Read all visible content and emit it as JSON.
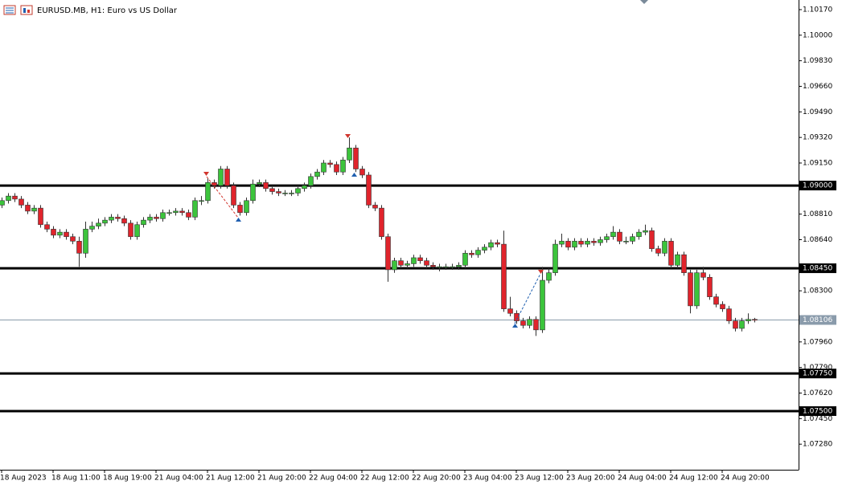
{
  "chart_data": {
    "type": "candlestick",
    "title": "EURUSD.MB, H1:  Euro vs US Dollar",
    "up_color": "#3cc43c",
    "down_color": "#e0242c",
    "categories": [
      "18 Aug 2023",
      null,
      null,
      null,
      null,
      null,
      null,
      null,
      "18 Aug 11:00",
      null,
      null,
      null,
      null,
      null,
      null,
      null,
      "18 Aug 19:00",
      null,
      null,
      null,
      null,
      null,
      null,
      null,
      "21 Aug 04:00",
      null,
      null,
      null,
      null,
      null,
      null,
      null,
      "21 Aug 12:00",
      null,
      null,
      null,
      null,
      null,
      null,
      null,
      "21 Aug 20:00",
      null,
      null,
      null,
      null,
      null,
      null,
      null,
      "22 Aug 04:00",
      null,
      null,
      null,
      null,
      null,
      null,
      null,
      "22 Aug 12:00",
      null,
      null,
      null,
      null,
      null,
      null,
      null,
      "22 Aug 20:00",
      null,
      null,
      null,
      null,
      null,
      null,
      null,
      "23 Aug 04:00",
      null,
      null,
      null,
      null,
      null,
      null,
      null,
      "23 Aug 12:00",
      null,
      null,
      null,
      null,
      null,
      null,
      null,
      "23 Aug 20:00",
      null,
      null,
      null,
      null,
      null,
      null,
      null,
      "24 Aug 04:00",
      null,
      null,
      null,
      null,
      null,
      null,
      null,
      "24 Aug 12:00",
      null,
      null,
      null,
      null,
      null,
      null,
      null,
      "24 Aug 20:00",
      null,
      null,
      null,
      null,
      null
    ],
    "ohlc": [
      [
        1.0887,
        1.0892,
        1.0885,
        1.089
      ],
      [
        1.089,
        1.0895,
        1.0888,
        1.0893
      ],
      [
        1.0893,
        1.0895,
        1.0889,
        1.0891
      ],
      [
        1.0891,
        1.0893,
        1.0885,
        1.0887
      ],
      [
        1.0887,
        1.0889,
        1.0881,
        1.0883
      ],
      [
        1.0883,
        1.0887,
        1.0881,
        1.0885
      ],
      [
        1.0885,
        1.0887,
        1.0872,
        1.0874
      ],
      [
        1.0874,
        1.0876,
        1.0869,
        1.0871
      ],
      [
        1.0871,
        1.0873,
        1.0865,
        1.0867
      ],
      [
        1.0867,
        1.0871,
        1.0865,
        1.0869
      ],
      [
        1.0869,
        1.0871,
        1.0864,
        1.0866
      ],
      [
        1.0866,
        1.0868,
        1.0861,
        1.0863
      ],
      [
        1.0863,
        1.0866,
        1.0846,
        1.0855
      ],
      [
        1.0855,
        1.0876,
        1.0852,
        1.0871
      ],
      [
        1.0871,
        1.0876,
        1.0869,
        1.0873
      ],
      [
        1.0873,
        1.0878,
        1.0871,
        1.0875
      ],
      [
        1.0875,
        1.0879,
        1.0873,
        1.0877
      ],
      [
        1.0877,
        1.0881,
        1.0875,
        1.0879
      ],
      [
        1.0879,
        1.0881,
        1.0876,
        1.0878
      ],
      [
        1.0878,
        1.088,
        1.0873,
        1.0875
      ],
      [
        1.0875,
        1.0877,
        1.0864,
        1.0866
      ],
      [
        1.0866,
        1.0876,
        1.0864,
        1.0874
      ],
      [
        1.0874,
        1.0879,
        1.0872,
        1.0877
      ],
      [
        1.0877,
        1.0881,
        1.0875,
        1.0879
      ],
      [
        1.0879,
        1.0881,
        1.0876,
        1.0878
      ],
      [
        1.0878,
        1.0884,
        1.0876,
        1.0882
      ],
      [
        1.0882,
        1.0884,
        1.088,
        1.0882
      ],
      [
        1.0882,
        1.0885,
        1.088,
        1.0883
      ],
      [
        1.0883,
        1.0885,
        1.088,
        1.0882
      ],
      [
        1.0882,
        1.0884,
        1.0877,
        1.0879
      ],
      [
        1.0879,
        1.0892,
        1.0877,
        1.089
      ],
      [
        1.089,
        1.0893,
        1.0887,
        1.089
      ],
      [
        1.089,
        1.0905,
        1.0888,
        1.0902
      ],
      [
        1.0902,
        1.0904,
        1.0898,
        1.09
      ],
      [
        1.09,
        1.0913,
        1.0898,
        1.0911
      ],
      [
        1.0911,
        1.0913,
        1.0898,
        1.09
      ],
      [
        1.09,
        1.0902,
        1.0885,
        1.0887
      ],
      [
        1.0887,
        1.0889,
        1.088,
        1.0882
      ],
      [
        1.0882,
        1.0892,
        1.088,
        1.089
      ],
      [
        1.089,
        1.0904,
        1.0888,
        1.0901
      ],
      [
        1.0901,
        1.0904,
        1.0899,
        1.0902
      ],
      [
        1.0902,
        1.0904,
        1.0896,
        1.0898
      ],
      [
        1.0898,
        1.09,
        1.0894,
        1.0896
      ],
      [
        1.0896,
        1.0898,
        1.0893,
        1.0895
      ],
      [
        1.0895,
        1.0897,
        1.0893,
        1.0895
      ],
      [
        1.0895,
        1.0897,
        1.0893,
        1.0895
      ],
      [
        1.0895,
        1.09,
        1.0893,
        1.0898
      ],
      [
        1.0898,
        1.0902,
        1.0896,
        1.09
      ],
      [
        1.09,
        1.0908,
        1.0898,
        1.0906
      ],
      [
        1.0906,
        1.0911,
        1.0904,
        1.0909
      ],
      [
        1.0909,
        1.0917,
        1.0907,
        1.0915
      ],
      [
        1.0915,
        1.0917,
        1.0912,
        1.0914
      ],
      [
        1.0914,
        1.0916,
        1.0907,
        1.0909
      ],
      [
        1.0909,
        1.0919,
        1.0907,
        1.0917
      ],
      [
        1.0917,
        1.0932,
        1.0915,
        1.0925
      ],
      [
        1.0925,
        1.0927,
        1.0909,
        1.0911
      ],
      [
        1.0911,
        1.0913,
        1.0905,
        1.0907
      ],
      [
        1.0907,
        1.0909,
        1.0885,
        1.0887
      ],
      [
        1.0887,
        1.0889,
        1.0883,
        1.0885
      ],
      [
        1.0885,
        1.0887,
        1.0864,
        1.0866
      ],
      [
        1.0866,
        1.0868,
        1.0836,
        1.0844
      ],
      [
        1.0844,
        1.0852,
        1.0842,
        1.085
      ],
      [
        1.085,
        1.0852,
        1.0845,
        1.0847
      ],
      [
        1.0847,
        1.085,
        1.0845,
        1.0848
      ],
      [
        1.0848,
        1.0854,
        1.0846,
        1.0852
      ],
      [
        1.0852,
        1.0854,
        1.0848,
        1.085
      ],
      [
        1.085,
        1.0852,
        1.0845,
        1.0847
      ],
      [
        1.0847,
        1.0849,
        1.0844,
        1.0846
      ],
      [
        1.0846,
        1.0848,
        1.0843,
        1.0846
      ],
      [
        1.0846,
        1.0848,
        1.0844,
        1.0846
      ],
      [
        1.0846,
        1.0848,
        1.0844,
        1.0846
      ],
      [
        1.0846,
        1.0849,
        1.0844,
        1.0847
      ],
      [
        1.0847,
        1.0857,
        1.0845,
        1.0855
      ],
      [
        1.0855,
        1.0857,
        1.0852,
        1.0854
      ],
      [
        1.0854,
        1.0859,
        1.0852,
        1.0857
      ],
      [
        1.0857,
        1.0861,
        1.0855,
        1.0859
      ],
      [
        1.0859,
        1.0864,
        1.0857,
        1.0862
      ],
      [
        1.0862,
        1.0864,
        1.0859,
        1.0861
      ],
      [
        1.0861,
        1.087,
        1.0816,
        1.0818
      ],
      [
        1.0818,
        1.0826,
        1.0813,
        1.0815
      ],
      [
        1.0815,
        1.0817,
        1.0808,
        1.081
      ],
      [
        1.081,
        1.0812,
        1.0805,
        1.0807
      ],
      [
        1.0807,
        1.0813,
        1.0805,
        1.0811
      ],
      [
        1.0811,
        1.0813,
        1.08,
        1.0804
      ],
      [
        1.0804,
        1.0846,
        1.0802,
        1.0837
      ],
      [
        1.0837,
        1.0845,
        1.0835,
        1.0842
      ],
      [
        1.0842,
        1.0864,
        1.084,
        1.0861
      ],
      [
        1.0861,
        1.0868,
        1.0859,
        1.0863
      ],
      [
        1.0863,
        1.0865,
        1.0857,
        1.0859
      ],
      [
        1.0859,
        1.0865,
        1.0857,
        1.0863
      ],
      [
        1.0863,
        1.0865,
        1.0859,
        1.0861
      ],
      [
        1.0861,
        1.0865,
        1.0859,
        1.0863
      ],
      [
        1.0863,
        1.0865,
        1.086,
        1.0862
      ],
      [
        1.0862,
        1.0866,
        1.086,
        1.0864
      ],
      [
        1.0864,
        1.0868,
        1.0862,
        1.0866
      ],
      [
        1.0866,
        1.0873,
        1.0864,
        1.0869
      ],
      [
        1.0869,
        1.0871,
        1.0861,
        1.0863
      ],
      [
        1.0863,
        1.0866,
        1.0861,
        1.0863
      ],
      [
        1.0863,
        1.0868,
        1.0861,
        1.0866
      ],
      [
        1.0866,
        1.0871,
        1.0864,
        1.0869
      ],
      [
        1.0869,
        1.0874,
        1.0867,
        1.087
      ],
      [
        1.087,
        1.0872,
        1.0856,
        1.0858
      ],
      [
        1.0858,
        1.086,
        1.0853,
        1.0855
      ],
      [
        1.0855,
        1.0865,
        1.0853,
        1.0863
      ],
      [
        1.0863,
        1.0865,
        1.0845,
        1.0847
      ],
      [
        1.0847,
        1.0856,
        1.0845,
        1.0854
      ],
      [
        1.0854,
        1.0856,
        1.084,
        1.0842
      ],
      [
        1.0842,
        1.0844,
        1.0815,
        1.082
      ],
      [
        1.082,
        1.0844,
        1.0818,
        1.0842
      ],
      [
        1.0842,
        1.0846,
        1.0837,
        1.0839
      ],
      [
        1.0839,
        1.0841,
        1.0824,
        1.0826
      ],
      [
        1.0826,
        1.0828,
        1.0819,
        1.0821
      ],
      [
        1.0821,
        1.0823,
        1.0816,
        1.0818
      ],
      [
        1.0818,
        1.082,
        1.0808,
        1.081
      ],
      [
        1.081,
        1.0812,
        1.0803,
        1.0805
      ],
      [
        1.0805,
        1.0812,
        1.0803,
        1.081
      ],
      [
        1.081,
        1.0815,
        1.0808,
        1.0811
      ],
      [
        1.0811,
        1.0812,
        1.0809,
        1.08106
      ]
    ],
    "ylim": [
      1.0711,
      1.10234
    ],
    "yticks": [
      {
        "value": 1.1017,
        "label": "1.10170"
      },
      {
        "value": 1.1,
        "label": "1.10000"
      },
      {
        "value": 1.0983,
        "label": "1.09830"
      },
      {
        "value": 1.0966,
        "label": "1.09660"
      },
      {
        "value": 1.0949,
        "label": "1.09490"
      },
      {
        "value": 1.0932,
        "label": "1.09320"
      },
      {
        "value": 1.0915,
        "label": "1.09150"
      },
      {
        "value": 1.0881,
        "label": "1.08810"
      },
      {
        "value": 1.0864,
        "label": "1.08640"
      },
      {
        "value": 1.083,
        "label": "1.08300"
      },
      {
        "value": 1.0796,
        "label": "1.07960"
      },
      {
        "value": 1.0779,
        "label": "1.07790"
      },
      {
        "value": 1.0762,
        "label": "1.07620"
      },
      {
        "value": 1.0745,
        "label": "1.07450"
      },
      {
        "value": 1.0728,
        "label": "1.07280"
      }
    ],
    "levels": [
      {
        "value": 1.09,
        "label": "1.09000"
      },
      {
        "value": 1.0845,
        "label": "1.08450"
      },
      {
        "value": 1.0775,
        "label": "1.07750"
      },
      {
        "value": 1.075,
        "label": "1.07500"
      }
    ],
    "price_line": {
      "value": 1.08106,
      "label": "1.08106"
    }
  }
}
